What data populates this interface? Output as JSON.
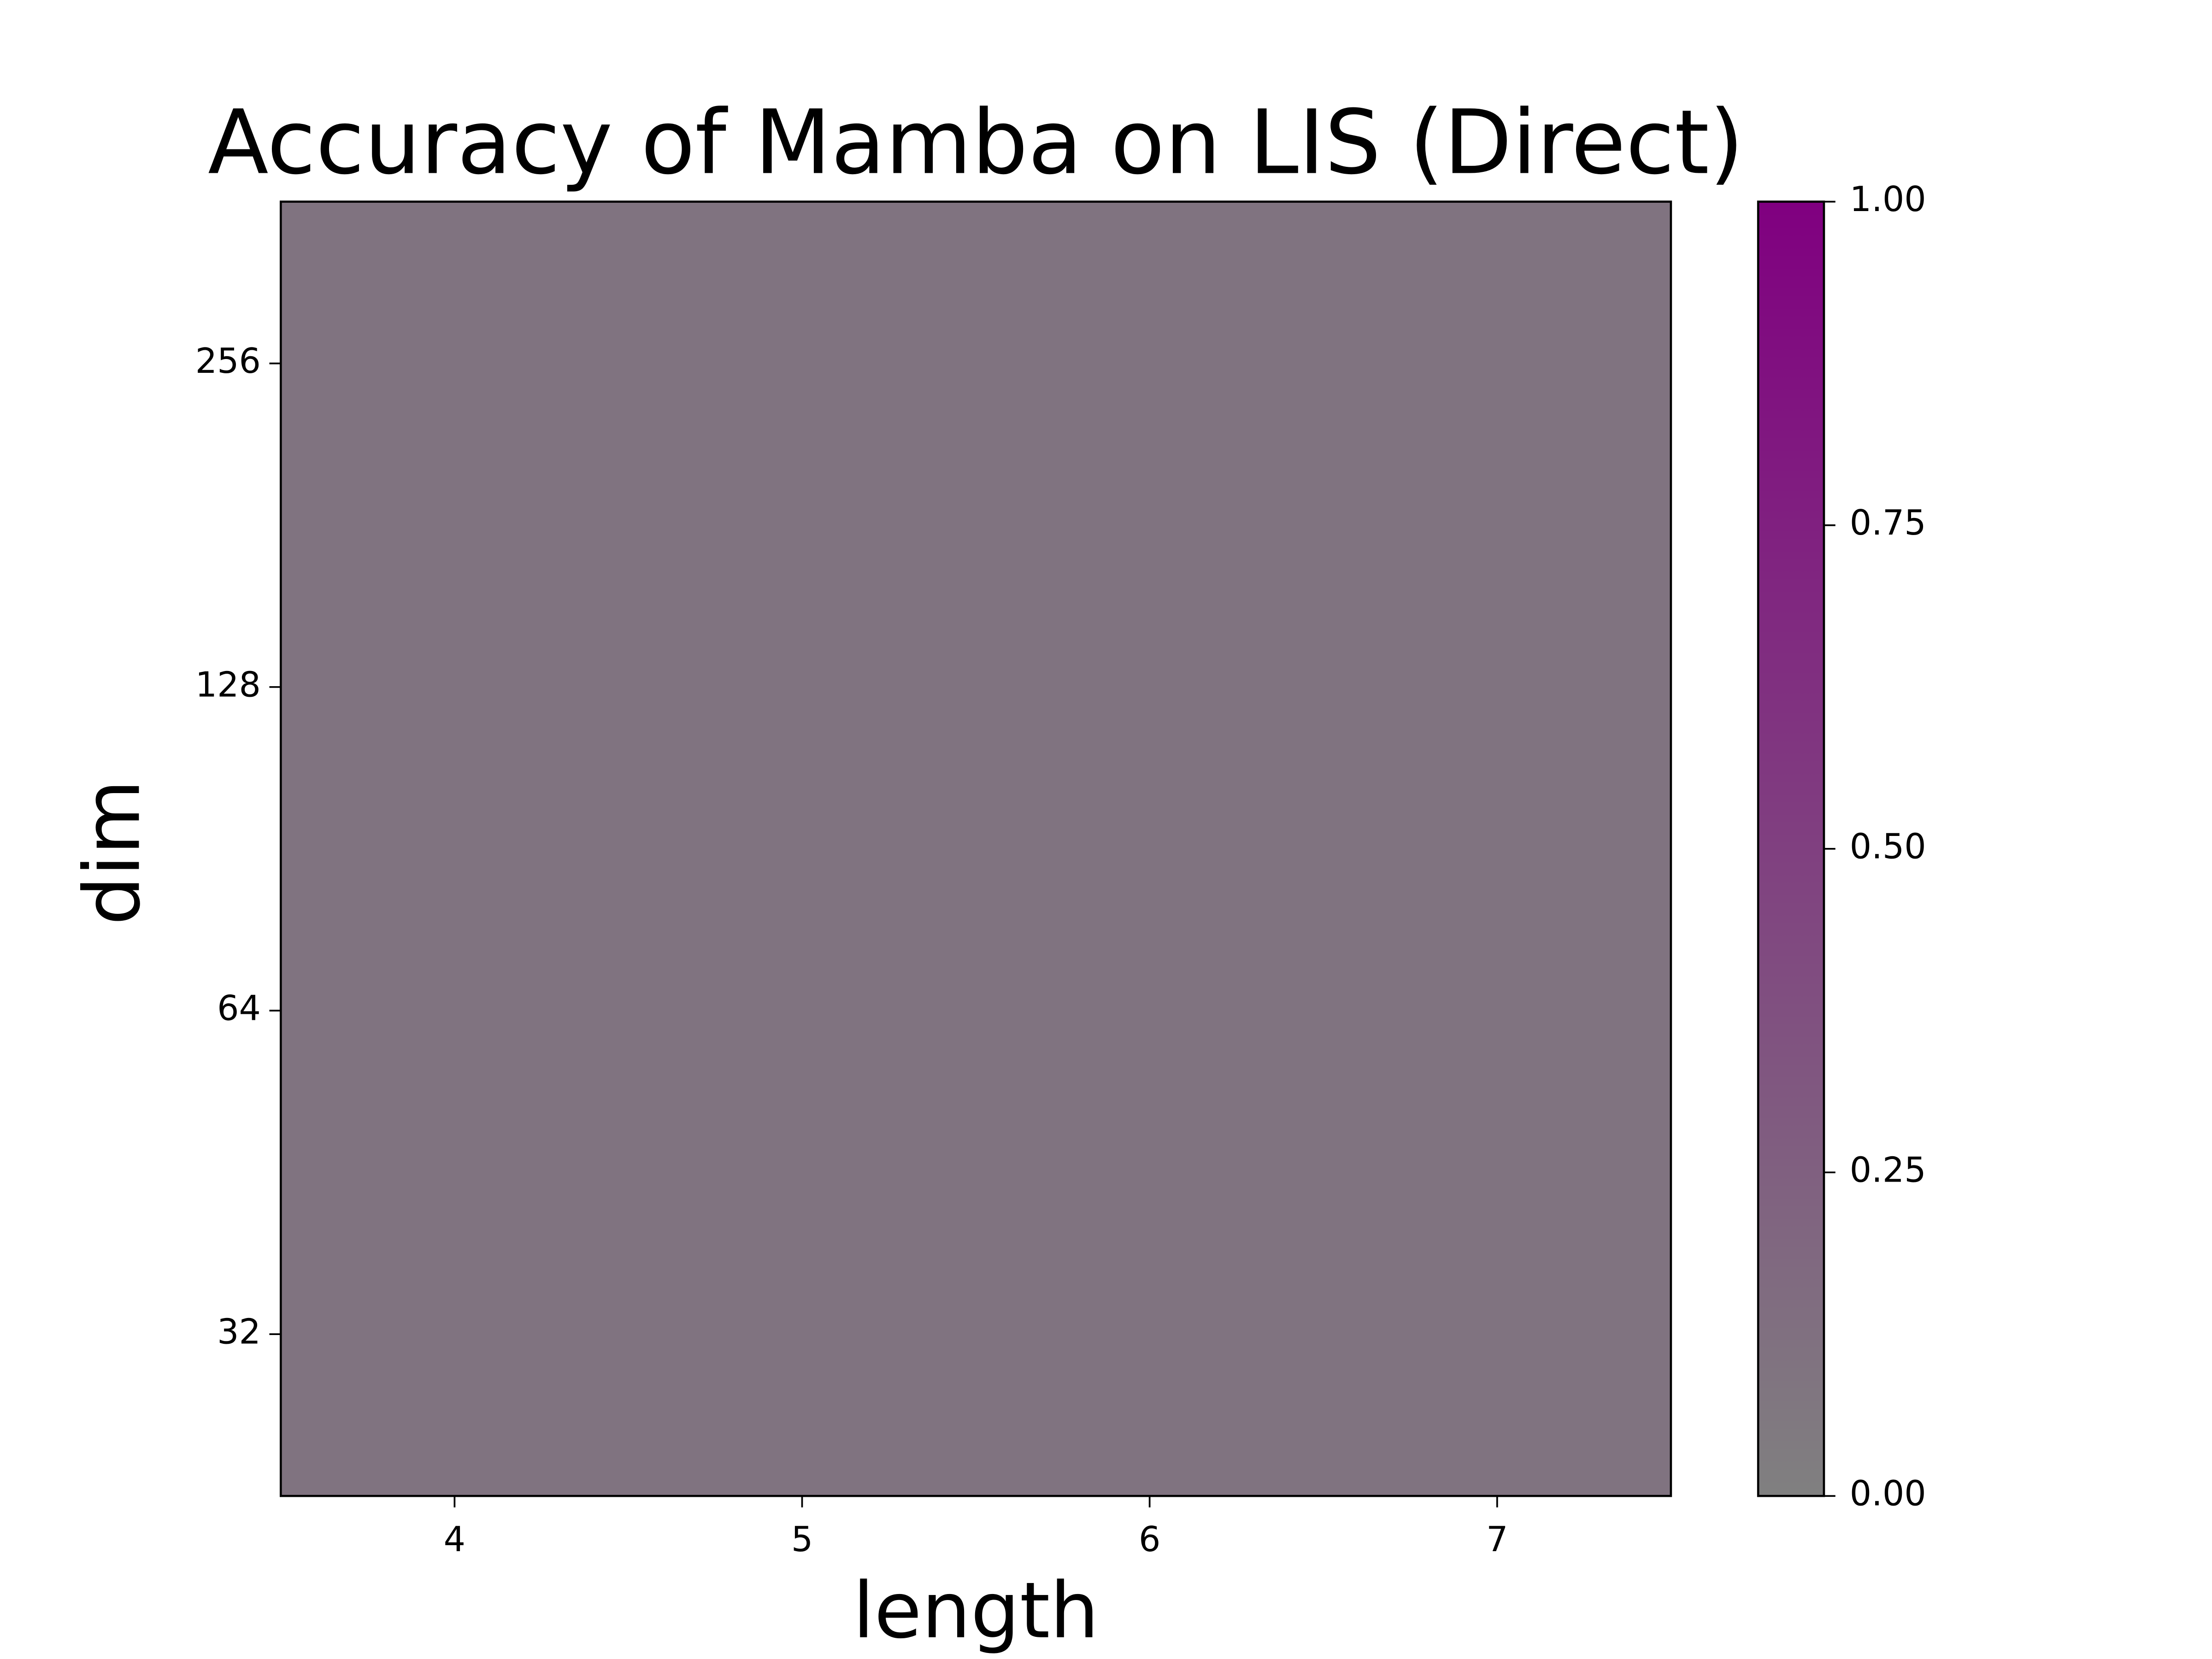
{
  "chart_data": {
    "type": "heatmap",
    "title": "Accuracy of Mamba on LIS (Direct)",
    "x_label": "length",
    "y_label": "dim",
    "x_categories": [
      4,
      5,
      6,
      7
    ],
    "y_categories": [
      32,
      64,
      128,
      256
    ],
    "values": [
      [
        0.1,
        0.1,
        0.1,
        0.1
      ],
      [
        0.1,
        0.1,
        0.1,
        0.1
      ],
      [
        0.1,
        0.1,
        0.1,
        0.1
      ],
      [
        0.1,
        0.1,
        0.1,
        0.1
      ]
    ],
    "cmap": [
      "#808080",
      "#800080"
    ],
    "clim": [
      0,
      1
    ],
    "cticks": [
      {
        "value": 0,
        "label": "0.00"
      },
      {
        "value": 0.25,
        "label": "0.25"
      },
      {
        "value": 0.5,
        "label": "0.50"
      },
      {
        "value": 0.75,
        "label": "0.75"
      },
      {
        "value": 1,
        "label": "1.00"
      }
    ]
  }
}
